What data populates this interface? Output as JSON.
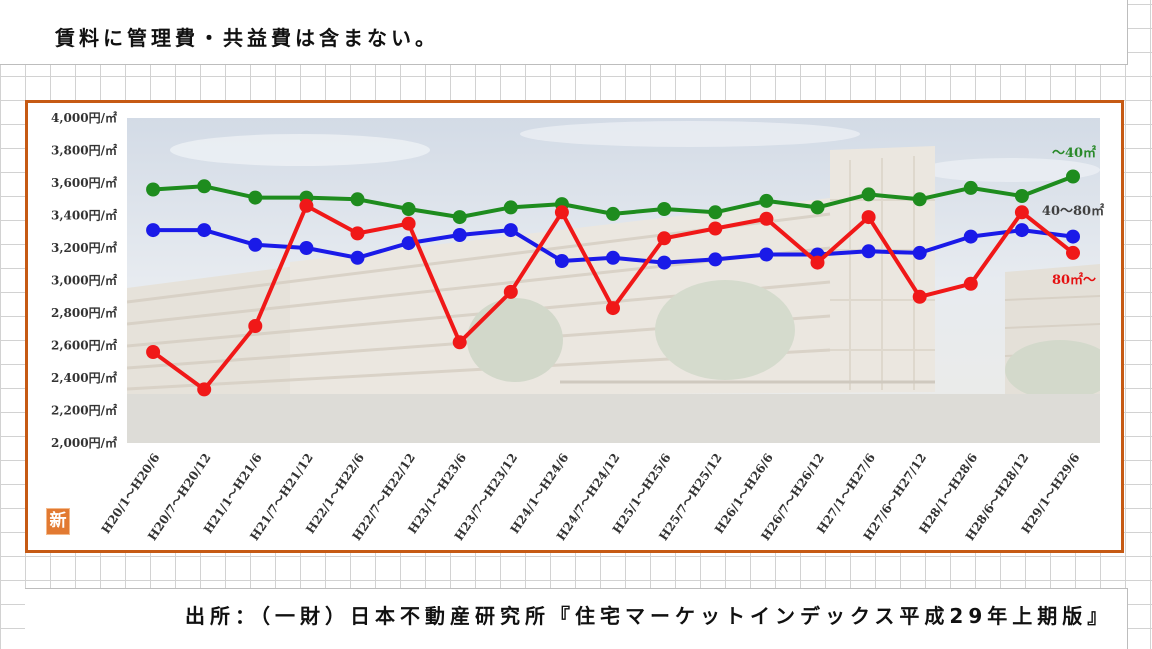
{
  "page_note": "賃料に管理費・共益費は含まない。",
  "source": "出所：（一財）日本不動産研究所『住宅マーケットインデックス平成29年上期版』",
  "badge": {
    "icon": "new-badge-icon",
    "text": "新",
    "color": "#e27a32"
  },
  "colors": {
    "frame": "#c65a14"
  },
  "chart_data": {
    "type": "line",
    "ylim": [
      2000,
      4000
    ],
    "y_step": 200,
    "y_tick_labels": [
      "2,000円/㎡",
      "2,200円/㎡",
      "2,400円/㎡",
      "2,600円/㎡",
      "2,800円/㎡",
      "3,000円/㎡",
      "3,200円/㎡",
      "3,400円/㎡",
      "3,600円/㎡",
      "3,800円/㎡",
      "4,000円/㎡"
    ],
    "grid": false,
    "legend_placement": "right",
    "categories": [
      "H20/1～H20/6",
      "H20/7～H20/12",
      "H21/1～H21/6",
      "H21/7～H21/12",
      "H22/1～H22/6",
      "H22/7～H22/12",
      "H23/1～H23/6",
      "H23/7～H23/12",
      "H24/1～H24/6",
      "H24/7～H24/12",
      "H25/1～H25/6",
      "H25/7～H25/12",
      "H26/1～H26/6",
      "H26/7～H26/12",
      "H27/1～H27/6",
      "H27/6～H27/12",
      "H28/1～H28/6",
      "H28/6～H28/12",
      "H29/1～H29/6"
    ],
    "series": [
      {
        "name": "～40㎡",
        "color": "#1e8c1e",
        "label_color": "#2a8a2a",
        "values": [
          3560,
          3580,
          3510,
          3510,
          3500,
          3440,
          3390,
          3450,
          3470,
          3410,
          3440,
          3420,
          3490,
          3450,
          3530,
          3500,
          3570,
          3520,
          3640
        ]
      },
      {
        "name": "40～80㎡",
        "color": "#1a1ae8",
        "label_color": "#404040",
        "values": [
          3310,
          3310,
          3220,
          3200,
          3140,
          3230,
          3280,
          3310,
          3120,
          3140,
          3110,
          3130,
          3160,
          3160,
          3180,
          3170,
          3270,
          3310,
          3270
        ]
      },
      {
        "name": "80㎡～",
        "color": "#f01818",
        "label_color": "#e51010",
        "values": [
          2560,
          2330,
          2720,
          3460,
          3290,
          3350,
          2620,
          2930,
          3420,
          2830,
          3260,
          3320,
          3380,
          3110,
          3390,
          2900,
          2980,
          3420,
          3170
        ]
      }
    ]
  }
}
